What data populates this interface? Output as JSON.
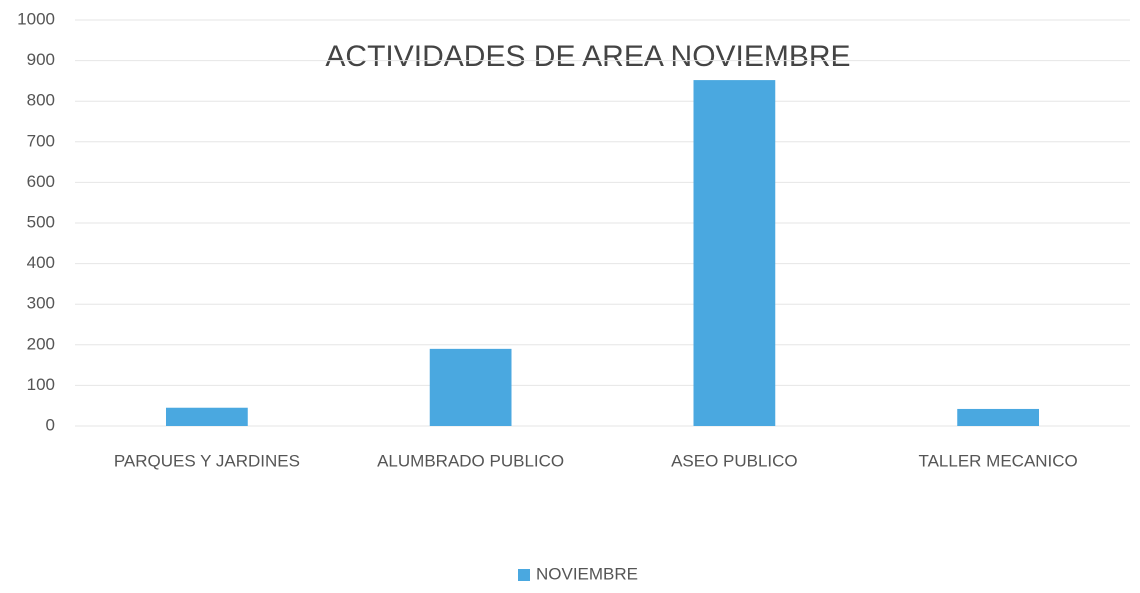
{
  "chart_data": {
    "type": "bar",
    "title": "ACTIVIDADES DE AREA NOVIEMBRE",
    "categories": [
      "PARQUES Y JARDINES",
      "ALUMBRADO PUBLICO",
      "ASEO PUBLICO",
      "TALLER MECANICO"
    ],
    "series": [
      {
        "name": "NOVIEMBRE",
        "color": "#4aa8e0",
        "values": [
          45,
          190,
          852,
          42
        ]
      }
    ],
    "ylim": [
      0,
      1000
    ],
    "yticks": [
      0,
      100,
      200,
      300,
      400,
      500,
      600,
      700,
      800,
      900,
      1000
    ],
    "grid": true,
    "legend": "bottom"
  }
}
